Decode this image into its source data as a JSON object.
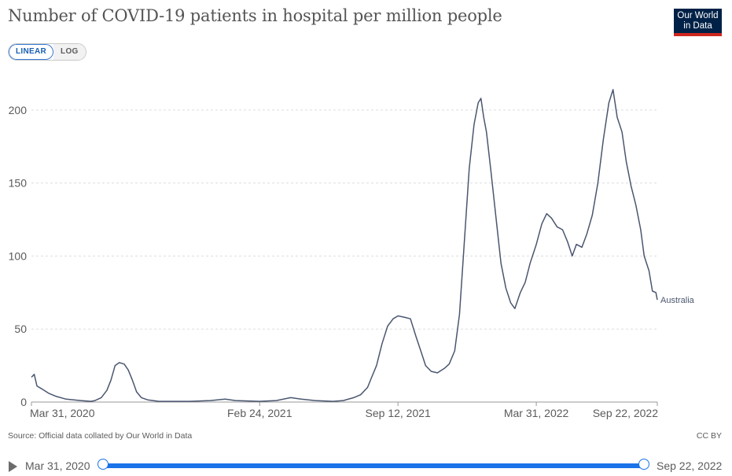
{
  "title": "Number of COVID-19 patients in hospital per million people",
  "logo": {
    "line1": "Our World",
    "line2": "in Data"
  },
  "scale_toggle": {
    "linear": "LINEAR",
    "log": "LOG",
    "active": "linear"
  },
  "source": "Source: Official data collated by Our World in Data",
  "license": "CC BY",
  "timeline": {
    "start": "Mar 31, 2020",
    "end": "Sep 22, 2022"
  },
  "colors": {
    "series": "#4a5670",
    "grid": "#dddddd",
    "slider": "#1a73e8",
    "logo_bg": "#002147",
    "logo_bar": "#ce261e"
  },
  "chart_data": {
    "type": "line",
    "title": "Number of COVID-19 patients in hospital per million people",
    "xlabel": "",
    "ylabel": "",
    "ylim": [
      0,
      215
    ],
    "yticks": [
      "0",
      "50",
      "100",
      "150",
      "200"
    ],
    "xticks": [
      "Mar 31, 2020",
      "Feb 24, 2021",
      "Sep 12, 2021",
      "Mar 31, 2022",
      "Sep 22, 2022"
    ],
    "grid": "horizontal dashed",
    "series": [
      {
        "name": "Australia",
        "points": [
          [
            "2020-03-31",
            17
          ],
          [
            "2020-04-04",
            19
          ],
          [
            "2020-04-08",
            11
          ],
          [
            "2020-04-15",
            9
          ],
          [
            "2020-04-25",
            6
          ],
          [
            "2020-05-05",
            4
          ],
          [
            "2020-05-20",
            2
          ],
          [
            "2020-06-10",
            1
          ],
          [
            "2020-06-25",
            0.5
          ],
          [
            "2020-07-01",
            1
          ],
          [
            "2020-07-10",
            3
          ],
          [
            "2020-07-18",
            8
          ],
          [
            "2020-07-24",
            15
          ],
          [
            "2020-07-30",
            25
          ],
          [
            "2020-08-05",
            27
          ],
          [
            "2020-08-12",
            26
          ],
          [
            "2020-08-18",
            22
          ],
          [
            "2020-08-24",
            15
          ],
          [
            "2020-08-30",
            7
          ],
          [
            "2020-09-06",
            3
          ],
          [
            "2020-09-15",
            1.5
          ],
          [
            "2020-10-01",
            0.5
          ],
          [
            "2020-11-15",
            0.5
          ],
          [
            "2020-12-15",
            1
          ],
          [
            "2021-01-05",
            2
          ],
          [
            "2021-01-20",
            1
          ],
          [
            "2021-02-24",
            0.5
          ],
          [
            "2021-03-20",
            1
          ],
          [
            "2021-04-10",
            3
          ],
          [
            "2021-04-25",
            2
          ],
          [
            "2021-05-15",
            1
          ],
          [
            "2021-06-10",
            0.5
          ],
          [
            "2021-06-25",
            1
          ],
          [
            "2021-07-10",
            3
          ],
          [
            "2021-07-20",
            5
          ],
          [
            "2021-07-30",
            10
          ],
          [
            "2021-08-05",
            17
          ],
          [
            "2021-08-12",
            25
          ],
          [
            "2021-08-20",
            40
          ],
          [
            "2021-08-28",
            52
          ],
          [
            "2021-09-05",
            57
          ],
          [
            "2021-09-12",
            59
          ],
          [
            "2021-09-22",
            58
          ],
          [
            "2021-09-30",
            57
          ],
          [
            "2021-10-08",
            45
          ],
          [
            "2021-10-15",
            35
          ],
          [
            "2021-10-22",
            25
          ],
          [
            "2021-10-30",
            21
          ],
          [
            "2021-11-08",
            20
          ],
          [
            "2021-11-18",
            23
          ],
          [
            "2021-11-25",
            26
          ],
          [
            "2021-12-03",
            35
          ],
          [
            "2021-12-10",
            60
          ],
          [
            "2021-12-17",
            110
          ],
          [
            "2021-12-24",
            160
          ],
          [
            "2021-12-31",
            190
          ],
          [
            "2022-01-06",
            205
          ],
          [
            "2022-01-10",
            208
          ],
          [
            "2022-01-14",
            195
          ],
          [
            "2022-01-18",
            185
          ],
          [
            "2022-01-24",
            160
          ],
          [
            "2022-02-01",
            125
          ],
          [
            "2022-02-08",
            95
          ],
          [
            "2022-02-15",
            78
          ],
          [
            "2022-02-22",
            68
          ],
          [
            "2022-02-28",
            64
          ],
          [
            "2022-03-08",
            75
          ],
          [
            "2022-03-15",
            82
          ],
          [
            "2022-03-22",
            95
          ],
          [
            "2022-03-31",
            108
          ],
          [
            "2022-04-08",
            122
          ],
          [
            "2022-04-15",
            129
          ],
          [
            "2022-04-22",
            126
          ],
          [
            "2022-04-30",
            120
          ],
          [
            "2022-05-08",
            118
          ],
          [
            "2022-05-15",
            110
          ],
          [
            "2022-05-22",
            100
          ],
          [
            "2022-05-28",
            108
          ],
          [
            "2022-06-05",
            106
          ],
          [
            "2022-06-12",
            115
          ],
          [
            "2022-06-20",
            128
          ],
          [
            "2022-06-28",
            150
          ],
          [
            "2022-07-06",
            180
          ],
          [
            "2022-07-14",
            205
          ],
          [
            "2022-07-20",
            214
          ],
          [
            "2022-07-26",
            195
          ],
          [
            "2022-08-02",
            185
          ],
          [
            "2022-08-08",
            165
          ],
          [
            "2022-08-15",
            148
          ],
          [
            "2022-08-22",
            135
          ],
          [
            "2022-08-29",
            118
          ],
          [
            "2022-09-03",
            100
          ],
          [
            "2022-09-10",
            90
          ],
          [
            "2022-09-15",
            76
          ],
          [
            "2022-09-20",
            75
          ],
          [
            "2022-09-22",
            70
          ]
        ]
      }
    ]
  }
}
